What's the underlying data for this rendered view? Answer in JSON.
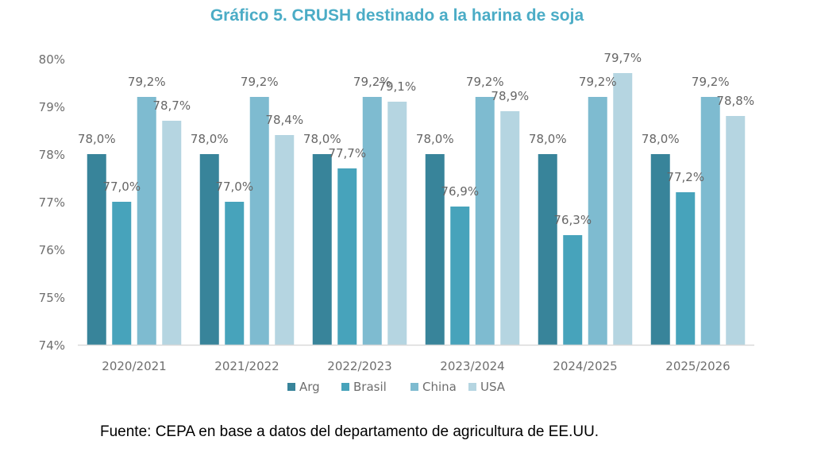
{
  "chart_data": {
    "type": "bar",
    "title": "Gráfico 5. CRUSH destinado a la harina de soja",
    "xlabel": "",
    "ylabel": "",
    "ylim": [
      74,
      80
    ],
    "yticks": [
      74,
      75,
      76,
      77,
      78,
      79,
      80
    ],
    "ytick_labels": [
      "74%",
      "75%",
      "76%",
      "77%",
      "78%",
      "79%",
      "80%"
    ],
    "grid": false,
    "legend_position": "bottom",
    "categories": [
      "2020/2021",
      "2021/2022",
      "2022/2023",
      "2023/2024",
      "2024/2025",
      "2025/2026"
    ],
    "series": [
      {
        "name": "Arg",
        "color": "#38849a",
        "values": [
          78.0,
          78.0,
          78.0,
          78.0,
          78.0,
          78.0
        ],
        "labels": [
          "78,0%",
          "78,0%",
          "78,0%",
          "78,0%",
          "78,0%",
          "78,0%"
        ]
      },
      {
        "name": "Brasil",
        "color": "#47a3bb",
        "values": [
          77.0,
          77.0,
          77.7,
          76.9,
          76.3,
          77.2
        ],
        "labels": [
          "77,0%",
          "77,0%",
          "77,7%",
          "76,9%",
          "76,3%",
          "77,2%"
        ]
      },
      {
        "name": "China",
        "color": "#7ebbd0",
        "values": [
          79.2,
          79.2,
          79.2,
          79.2,
          79.2,
          79.2
        ],
        "labels": [
          "79,2%",
          "79,2%",
          "79,2%",
          "79,2%",
          "79,2%",
          "79,2%"
        ]
      },
      {
        "name": "USA",
        "color": "#b5d5e1",
        "values": [
          78.7,
          78.4,
          79.1,
          78.9,
          79.7,
          78.8
        ],
        "labels": [
          "78,7%",
          "78,4%",
          "79,1%",
          "78,9%",
          "79,7%",
          "78,8%"
        ]
      }
    ],
    "source": "Fuente: CEPA en base a datos del departamento de agricultura de EE.UU."
  }
}
